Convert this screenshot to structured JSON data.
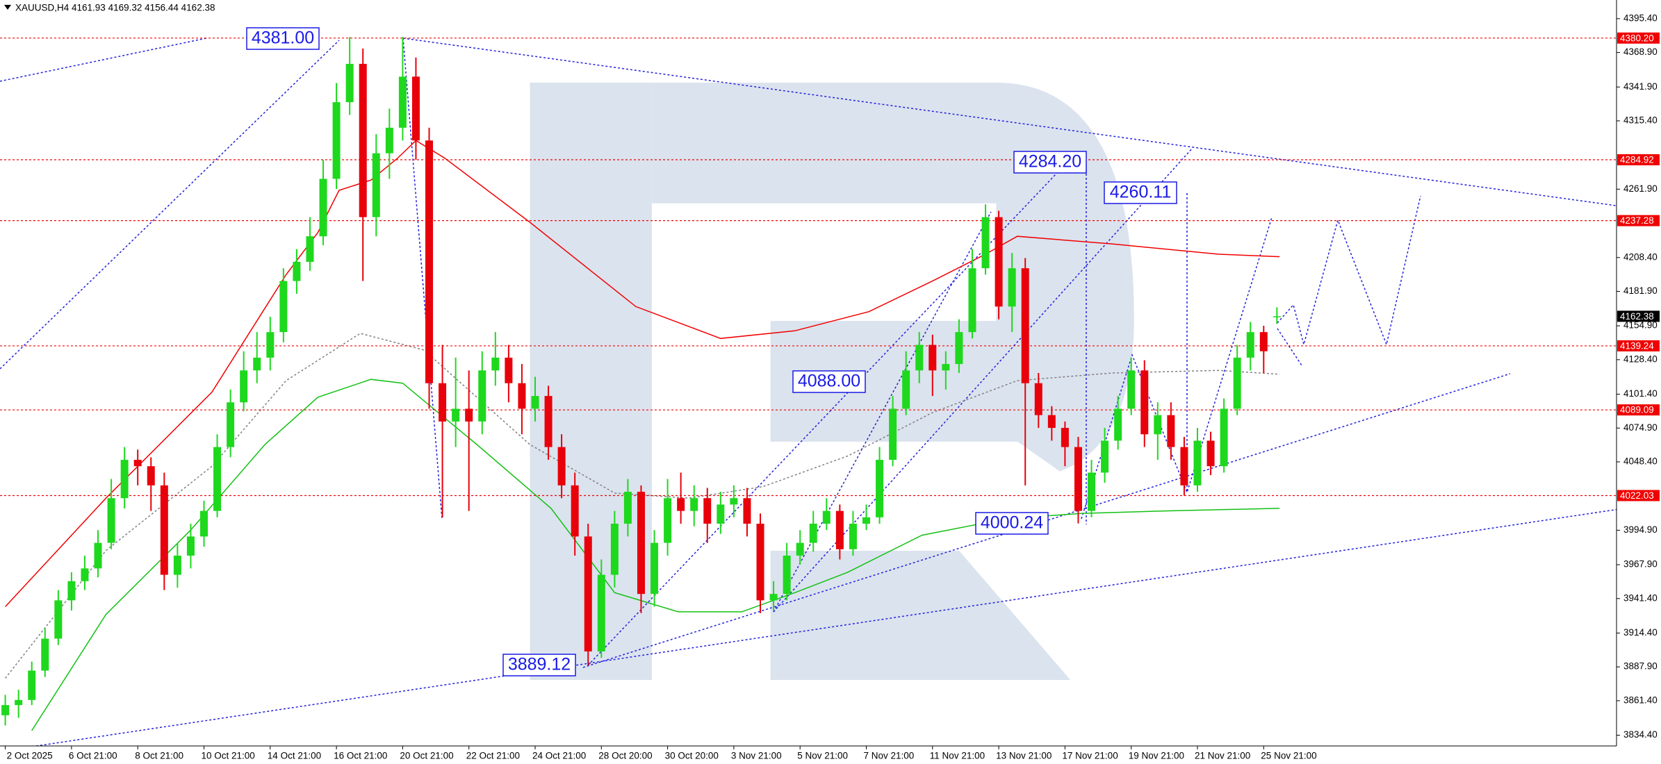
{
  "chart_data": {
    "type": "candlestick",
    "title": "XAUUSD,H4  4161.93 4169.32 4156.44 4162.38",
    "categories": [
      "2 Oct 2025",
      null,
      null,
      null,
      null,
      "6 Oct 21:00",
      null,
      null,
      null,
      null,
      "8 Oct 21:00",
      null,
      null,
      null,
      null,
      "10 Oct 21:00",
      null,
      null,
      null,
      null,
      "14 Oct 21:00",
      null,
      null,
      null,
      null,
      "16 Oct 21:00",
      null,
      null,
      null,
      null,
      "20 Oct 21:00",
      null,
      null,
      null,
      null,
      "22 Oct 21:00",
      null,
      null,
      null,
      null,
      "24 Oct 21:00",
      null,
      null,
      null,
      null,
      "28 Oct 20:00",
      null,
      null,
      null,
      null,
      "30 Oct 20:00",
      null,
      null,
      null,
      null,
      "3 Nov 21:00",
      null,
      null,
      null,
      null,
      "5 Nov 21:00",
      null,
      null,
      null,
      null,
      "7 Nov 21:00",
      null,
      null,
      null,
      null,
      "11 Nov 21:00",
      null,
      null,
      null,
      null,
      "13 Nov 21:00",
      null,
      null,
      null,
      null,
      "17 Nov 21:00",
      null,
      null,
      null,
      null,
      "19 Nov 21:00",
      null,
      null,
      null,
      null,
      "21 Nov 21:00",
      null,
      null,
      null,
      null,
      "25 Nov 21:00",
      null
    ],
    "ohlc": [
      [
        3850,
        3866,
        3842,
        3858
      ],
      [
        3858,
        3870,
        3848,
        3862
      ],
      [
        3862,
        3892,
        3858,
        3885
      ],
      [
        3885,
        3918,
        3880,
        3910
      ],
      [
        3910,
        3948,
        3905,
        3940
      ],
      [
        3940,
        3962,
        3932,
        3955
      ],
      [
        3955,
        3975,
        3948,
        3965
      ],
      [
        3965,
        3995,
        3958,
        3985
      ],
      [
        3985,
        4035,
        3980,
        4020
      ],
      [
        4020,
        4060,
        4012,
        4050
      ],
      [
        4050,
        4058,
        4030,
        4045
      ],
      [
        4045,
        4052,
        4010,
        4030
      ],
      [
        4030,
        4040,
        3948,
        3960
      ],
      [
        3960,
        3985,
        3950,
        3975
      ],
      [
        3975,
        4000,
        3965,
        3990
      ],
      [
        3990,
        4018,
        3982,
        4010
      ],
      [
        4010,
        4070,
        4005,
        4060
      ],
      [
        4060,
        4105,
        4052,
        4095
      ],
      [
        4095,
        4135,
        4088,
        4120
      ],
      [
        4120,
        4150,
        4110,
        4130
      ],
      [
        4130,
        4162,
        4120,
        4150
      ],
      [
        4150,
        4200,
        4142,
        4190
      ],
      [
        4190,
        4215,
        4180,
        4205
      ],
      [
        4205,
        4240,
        4198,
        4225
      ],
      [
        4225,
        4285,
        4218,
        4270
      ],
      [
        4270,
        4345,
        4262,
        4330
      ],
      [
        4330,
        4381,
        4320,
        4360
      ],
      [
        4360,
        4372,
        4190,
        4240
      ],
      [
        4240,
        4305,
        4225,
        4290
      ],
      [
        4290,
        4325,
        4270,
        4310
      ],
      [
        4310,
        4381,
        4300,
        4350
      ],
      [
        4350,
        4365,
        4285,
        4300
      ],
      [
        4300,
        4310,
        4090,
        4110
      ],
      [
        4110,
        4140,
        4005,
        4080
      ],
      [
        4080,
        4130,
        4060,
        4090
      ],
      [
        4090,
        4120,
        4010,
        4080
      ],
      [
        4080,
        4135,
        4070,
        4120
      ],
      [
        4120,
        4150,
        4108,
        4130
      ],
      [
        4130,
        4140,
        4095,
        4110
      ],
      [
        4110,
        4125,
        4070,
        4090
      ],
      [
        4090,
        4115,
        4080,
        4100
      ],
      [
        4100,
        4108,
        4050,
        4060
      ],
      [
        4060,
        4070,
        4020,
        4030
      ],
      [
        4030,
        4040,
        3975,
        3990
      ],
      [
        3990,
        4000,
        3889.12,
        3900
      ],
      [
        3900,
        3972,
        3895,
        3960
      ],
      [
        3960,
        4010,
        3950,
        4000
      ],
      [
        4000,
        4035,
        3990,
        4025
      ],
      [
        4025,
        4030,
        3930,
        3945
      ],
      [
        3945,
        3995,
        3935,
        3985
      ],
      [
        3985,
        4035,
        3975,
        4020
      ],
      [
        4020,
        4040,
        4000,
        4010
      ],
      [
        4010,
        4030,
        3998,
        4020
      ],
      [
        4020,
        4028,
        3985,
        4000
      ],
      [
        4000,
        4025,
        3992,
        4015
      ],
      [
        4015,
        4030,
        4005,
        4020
      ],
      [
        4020,
        4028,
        3990,
        4000
      ],
      [
        4000,
        4008,
        3930,
        3940
      ],
      [
        3940,
        3955,
        3932,
        3945
      ],
      [
        3945,
        3985,
        3940,
        3975
      ],
      [
        3975,
        3995,
        3968,
        3985
      ],
      [
        3985,
        4010,
        3978,
        4000
      ],
      [
        4000,
        4020,
        3995,
        4010
      ],
      [
        4010,
        4015,
        3972,
        3980
      ],
      [
        3980,
        4010,
        3975,
        4000
      ],
      [
        4000,
        4015,
        3995,
        4005
      ],
      [
        4005,
        4060,
        4000,
        4050
      ],
      [
        4050,
        4100,
        4045,
        4090
      ],
      [
        4090,
        4135,
        4085,
        4120
      ],
      [
        4120,
        4150,
        4110,
        4140
      ],
      [
        4140,
        4148,
        4100,
        4120
      ],
      [
        4120,
        4135,
        4105,
        4125
      ],
      [
        4125,
        4160,
        4118,
        4150
      ],
      [
        4150,
        4215,
        4145,
        4200
      ],
      [
        4200,
        4250,
        4195,
        4240
      ],
      [
        4240,
        4245,
        4160,
        4170
      ],
      [
        4170,
        4212,
        4150,
        4200
      ],
      [
        4200,
        4208,
        4030,
        4110
      ],
      [
        4110,
        4118,
        4075,
        4085
      ],
      [
        4085,
        4092,
        4065,
        4075
      ],
      [
        4075,
        4080,
        4045,
        4060
      ],
      [
        4060,
        4068,
        4000.24,
        4010
      ],
      [
        4010,
        4050,
        4005,
        4040
      ],
      [
        4040,
        4075,
        4032,
        4065
      ],
      [
        4065,
        4100,
        4058,
        4090
      ],
      [
        4090,
        4130,
        4085,
        4120
      ],
      [
        4120,
        4128,
        4060,
        4070
      ],
      [
        4070,
        4095,
        4050,
        4085
      ],
      [
        4085,
        4095,
        4050,
        4060
      ],
      [
        4060,
        4068,
        4022,
        4030
      ],
      [
        4030,
        4075,
        4025,
        4065
      ],
      [
        4065,
        4072,
        4038,
        4045
      ],
      [
        4045,
        4098,
        4040,
        4090
      ],
      [
        4090,
        4140,
        4085,
        4130
      ],
      [
        4130,
        4158,
        4120,
        4150
      ],
      [
        4150,
        4155,
        4118,
        4135
      ],
      [
        4161.93,
        4169.32,
        4156.44,
        4162.38
      ]
    ],
    "up_color": "#1ed81e",
    "down_color": "#e8000b",
    "ylim": [
      3826,
      4410
    ],
    "yticks": [
      {
        "value": 4395.4,
        "label": "4395.40"
      },
      {
        "value": 4368.9,
        "label": "4368.90"
      },
      {
        "value": 4341.9,
        "label": "4341.90"
      },
      {
        "value": 4315.4,
        "label": "4315.40"
      },
      {
        "value": 4261.9,
        "label": "4261.90"
      },
      {
        "value": 4208.4,
        "label": "4208.40"
      },
      {
        "value": 4181.9,
        "label": "4181.90"
      },
      {
        "value": 4154.9,
        "label": "4154.90"
      },
      {
        "value": 4128.4,
        "label": "4128.40"
      },
      {
        "value": 4101.4,
        "label": "4101.40"
      },
      {
        "value": 4074.9,
        "label": "4074.90"
      },
      {
        "value": 4048.4,
        "label": "4048.40"
      },
      {
        "value": 3994.9,
        "label": "3994.90"
      },
      {
        "value": 3967.9,
        "label": "3967.90"
      },
      {
        "value": 3941.4,
        "label": "3941.40"
      },
      {
        "value": 3914.4,
        "label": "3914.40"
      },
      {
        "value": 3887.9,
        "label": "3887.90"
      },
      {
        "value": 3861.4,
        "label": "3861.40"
      },
      {
        "value": 3834.4,
        "label": "3834.40"
      }
    ],
    "levels": [
      {
        "value": 4380.2,
        "label": "4380.20"
      },
      {
        "value": 4284.92,
        "label": "4284.92"
      },
      {
        "value": 4237.28,
        "label": "4237.28"
      },
      {
        "value": 4139.24,
        "label": "4139.24"
      },
      {
        "value": 4089.09,
        "label": "4089.09"
      },
      {
        "value": 4022.03,
        "label": "4022.03"
      }
    ],
    "level_color": "#f00000",
    "last_price": {
      "value": 4162.38,
      "label": "4162.38"
    },
    "annotations": [
      {
        "value": 4381,
        "label": "4381.00"
      },
      {
        "value": 4284.2,
        "label": "4284.20"
      },
      {
        "value": 4260.11,
        "label": "4260.11"
      },
      {
        "value": 4088,
        "label": "4088.00"
      },
      {
        "value": 4000.24,
        "label": "4000.24"
      },
      {
        "value": 3889.12,
        "label": "3889.12"
      }
    ],
    "annotation_color": "#1a1ae6",
    "indicators": [
      {
        "color": "#f00000",
        "dotted": false,
        "x": [
          0,
          7.6,
          15.6,
          21.2,
          23.6,
          25.2,
          27.6,
          29.6,
          31,
          33.2,
          39.6,
          47.6,
          54,
          59.6,
          65.2,
          70,
          74,
          76.4,
          83.6,
          91.6,
          96.2
        ],
        "values": [
          3935,
          4020,
          4103,
          4195,
          4228,
          4261,
          4269,
          4286,
          4300,
          4286,
          4236,
          4170,
          4145,
          4151,
          4166,
          4190,
          4211,
          4225,
          4219,
          4211,
          4209
        ]
      },
      {
        "color": "#12c012",
        "dotted": false,
        "x": [
          2,
          7.6,
          14,
          19.6,
          23.6,
          27.6,
          30,
          35.6,
          41.2,
          46,
          50.8,
          55.6,
          59.6,
          63.6,
          69.2,
          75.6,
          81.2,
          87.6,
          96.2
        ],
        "values": [
          3838,
          3929,
          3995,
          4062,
          4099,
          4113,
          4110,
          4062,
          4012,
          3946,
          3931,
          3931,
          3946,
          3962,
          3991,
          4004,
          4008,
          4010,
          4012
        ]
      },
      {
        "color": "#808080",
        "dotted": true,
        "x": [
          0,
          7.6,
          15.6,
          21.2,
          26.8,
          31.6,
          39.6,
          46,
          51.6,
          57.2,
          63.6,
          70,
          76.4,
          83.6,
          91.6,
          96.2
        ],
        "values": [
          3879,
          3979,
          4045,
          4112,
          4149,
          4136,
          4062,
          4024,
          4020,
          4029,
          4053,
          4087,
          4112,
          4118,
          4120,
          4117
        ]
      }
    ]
  }
}
